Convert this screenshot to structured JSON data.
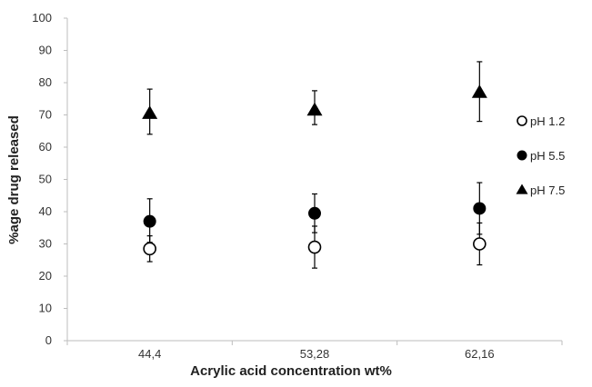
{
  "chart_data": {
    "type": "scatter",
    "xlabel": "Acrylic acid concentration wt%",
    "ylabel": "%age drug released",
    "categories": [
      "44,4",
      "53,28",
      "62,16"
    ],
    "ylim": [
      0,
      100
    ],
    "yticks": [
      0,
      10,
      20,
      30,
      40,
      50,
      60,
      70,
      80,
      90,
      100
    ],
    "grid": false,
    "legend_position": "right",
    "series": [
      {
        "name": "pH 1.2",
        "marker": "open-circle",
        "color": "#000000",
        "values": [
          28.5,
          29,
          30
        ],
        "err_low": [
          24.5,
          22.5,
          23.5
        ],
        "err_high": [
          32.5,
          35.5,
          36.5
        ]
      },
      {
        "name": "pH 5.5",
        "marker": "filled-circle",
        "color": "#000000",
        "values": [
          37,
          39.5,
          41
        ],
        "err_low": [
          30.5,
          33.5,
          33
        ],
        "err_high": [
          44,
          45.5,
          49
        ]
      },
      {
        "name": "pH 7.5",
        "marker": "filled-triangle",
        "color": "#000000",
        "values": [
          70.5,
          71.5,
          77
        ],
        "err_low": [
          64,
          67,
          68
        ],
        "err_high": [
          78,
          77.5,
          86.5
        ]
      }
    ]
  }
}
